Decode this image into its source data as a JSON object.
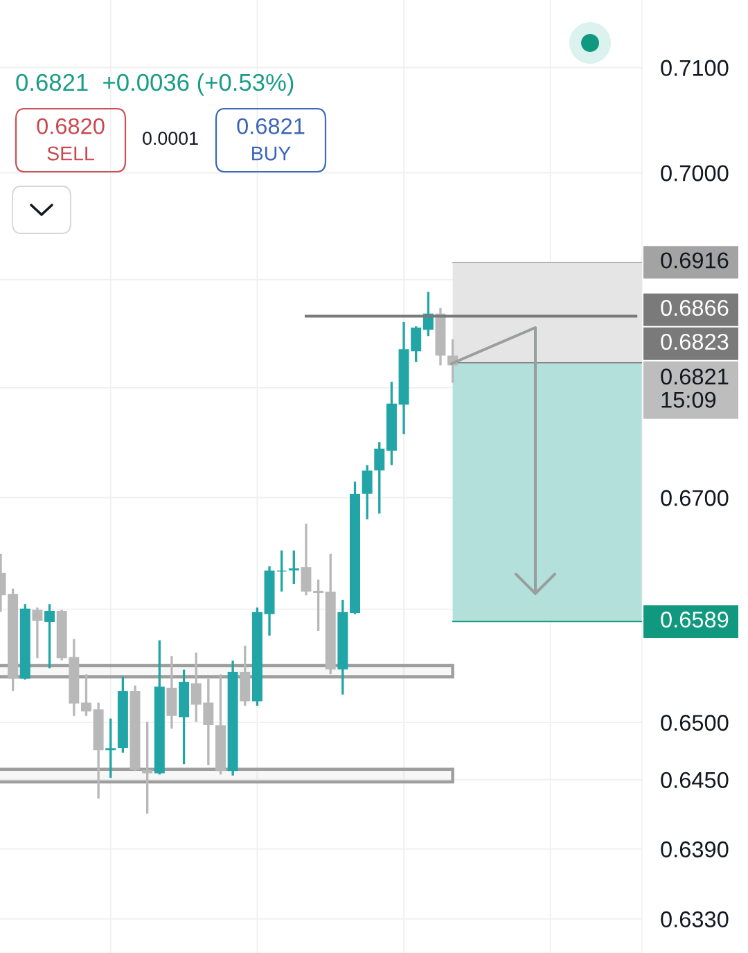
{
  "chart_data": {
    "type": "candlestick",
    "subtitle": "0.6821  +0.0036 (+0.53%)",
    "categories": [
      null,
      null,
      null,
      null,
      null,
      null,
      null,
      null,
      null,
      null,
      null,
      null,
      null,
      null,
      null,
      null,
      null,
      null,
      null,
      null,
      null,
      null,
      null,
      null,
      null,
      null,
      null,
      null,
      null,
      null,
      null,
      null,
      null,
      null,
      null,
      null,
      null,
      null,
      null,
      null,
      null,
      null,
      null,
      null,
      null,
      null,
      null,
      null,
      null,
      null,
      null,
      null,
      null
    ],
    "ohlc": [
      [
        0.6632,
        0.6649,
        0.6598,
        0.6613
      ],
      [
        0.6613,
        0.6618,
        0.6528,
        0.6539
      ],
      [
        0.6539,
        0.6604,
        0.6538,
        0.66
      ],
      [
        0.6599,
        0.6601,
        0.6557,
        0.659
      ],
      [
        0.6589,
        0.6604,
        0.6548,
        0.6598
      ],
      [
        0.6598,
        0.6599,
        0.6555,
        0.6557
      ],
      [
        0.6557,
        0.6573,
        0.6506,
        0.6517
      ],
      [
        0.6517,
        0.6542,
        0.6506,
        0.651
      ],
      [
        0.6511,
        0.6517,
        0.6434,
        0.6476
      ],
      [
        0.6476,
        0.6503,
        0.6452,
        0.6477
      ],
      [
        0.6478,
        0.654,
        0.6474,
        0.6527
      ],
      [
        0.6527,
        0.6532,
        0.6458,
        0.6459
      ],
      [
        0.6458,
        0.65,
        0.6421,
        0.6456
      ],
      [
        0.6456,
        0.6572,
        0.6455,
        0.6531
      ],
      [
        0.653,
        0.6558,
        0.6495,
        0.6506
      ],
      [
        0.6505,
        0.6546,
        0.6464,
        0.6535
      ],
      [
        0.6534,
        0.6561,
        0.6501,
        0.6516
      ],
      [
        0.6517,
        0.6538,
        0.6463,
        0.6498
      ],
      [
        0.6497,
        0.6542,
        0.6455,
        0.6458
      ],
      [
        0.6458,
        0.6554,
        0.6454,
        0.6544
      ],
      [
        0.6544,
        0.6567,
        0.6515,
        0.6519
      ],
      [
        0.6519,
        0.6601,
        0.6515,
        0.6597
      ],
      [
        0.6596,
        0.6638,
        0.6577,
        0.6634
      ],
      [
        0.6634,
        0.6652,
        0.6616,
        0.6634
      ],
      [
        0.6635,
        0.6652,
        0.6623,
        0.6636
      ],
      [
        0.6637,
        0.6676,
        0.6613,
        0.6616
      ],
      [
        0.6616,
        0.6626,
        0.6581,
        0.6615
      ],
      [
        0.6615,
        0.6649,
        0.6543,
        0.6547
      ],
      [
        0.6547,
        0.6608,
        0.6525,
        0.6597
      ],
      [
        0.6597,
        0.6714,
        0.6596,
        0.6703
      ],
      [
        0.6704,
        0.6729,
        0.6681,
        0.6724
      ],
      [
        0.6725,
        0.675,
        0.6686,
        0.6744
      ],
      [
        0.6743,
        0.6805,
        0.673,
        0.6785
      ],
      [
        0.6785,
        0.686,
        0.6758,
        0.6835
      ],
      [
        0.6834,
        0.6856,
        0.6824,
        0.6855
      ],
      [
        0.6854,
        0.6888,
        0.6848,
        0.6868
      ],
      [
        0.6868,
        0.6873,
        0.6821,
        0.683
      ],
      [
        0.6829,
        0.6844,
        0.6805,
        0.6821
      ],
      null,
      null,
      null,
      null,
      null,
      null,
      null,
      null,
      null,
      null,
      null,
      null,
      null,
      null,
      null
    ],
    "colors": [
      "#b8b8b8",
      "#b8b8b8",
      "#22a5a6",
      "#b8b8b8",
      "#22a5a6",
      "#b8b8b8",
      "#b8b8b8",
      "#b8b8b8",
      "#b8b8b8",
      "#22a5a6",
      "#22a5a6",
      "#b8b8b8",
      "#b8b8b8",
      "#22a5a6",
      "#b8b8b8",
      "#22a5a6",
      "#b8b8b8",
      "#b8b8b8",
      "#b8b8b8",
      "#22a5a6",
      "#b8b8b8",
      "#22a5a6",
      "#22a5a6",
      "#22a5a6",
      "#22a5a6",
      "#b8b8b8",
      "#b8b8b8",
      "#b8b8b8",
      "#22a5a6",
      "#22a5a6",
      "#22a5a6",
      "#22a5a6",
      "#22a5a6",
      "#22a5a6",
      "#22a5a6",
      "#22a5a6",
      "#b8b8b8",
      "#b8b8b8",
      null,
      null,
      null,
      null,
      null,
      null,
      null,
      null,
      null,
      null,
      null,
      null,
      null,
      null,
      null
    ],
    "series": [
      {
        "type": "line",
        "color": "#7a7a7a",
        "values": [
          null,
          null,
          null,
          null,
          null,
          null,
          null,
          null,
          null,
          null,
          null,
          null,
          null,
          null,
          null,
          null,
          null,
          null,
          null,
          null,
          null,
          null,
          null,
          null,
          null,
          0.6866,
          0.6866,
          0.6866,
          0.6866,
          0.6866,
          0.6866,
          0.6866,
          0.6866,
          0.6866,
          0.6866,
          0.6866,
          0.6866,
          0.6866,
          0.6866,
          0.6866,
          0.6866,
          0.6866,
          0.6866,
          0.6866,
          0.6866,
          0.6866,
          0.6866,
          0.6866,
          0.6866,
          0.6866,
          0.6866,
          0.6866,
          0.6866
        ],
        "value_labels": [
          null,
          null,
          null,
          null,
          null,
          null,
          null,
          null,
          null,
          null,
          null,
          null,
          null,
          null,
          null,
          null,
          null,
          null,
          null,
          null,
          null,
          null,
          null,
          null,
          null,
          null,
          null,
          null,
          null,
          null,
          null,
          null,
          null,
          null,
          null,
          null,
          null,
          null,
          null,
          null,
          null,
          null,
          null,
          null,
          null,
          null,
          null,
          null,
          null,
          null,
          null,
          null,
          "0.6866"
        ]
      }
    ],
    "bands": [
      {
        "axis": "y",
        "from": 0.6823,
        "to": 0.6916,
        "color": "#e5e5e5"
      },
      {
        "axis": "y",
        "from": 0.6589,
        "to": 0.6823,
        "color": "#b3e0db"
      },
      {
        "axis": "y",
        "from": 0.654,
        "to": 0.655,
        "color": "#9e9e9e"
      },
      {
        "axis": "y",
        "from": 0.6448,
        "to": 0.6459,
        "color": "#9e9e9e"
      }
    ],
    "ref_lines": [
      {
        "axis": "y",
        "value": 0.6916,
        "label": "0.6916",
        "color": "#a3a3a3"
      },
      {
        "axis": "y",
        "value": 0.6823,
        "label": "0.6823",
        "color": "#7a7a7a"
      },
      {
        "axis": "y",
        "value": 0.6589,
        "label": "0.6589",
        "color": "#10997f"
      }
    ],
    "annotations": [
      "0.6820",
      "SELL",
      "0.0001",
      "0.6821",
      "BUY",
      "0.6821\n15:09"
    ],
    "log": "y",
    "ylim": [
      0.6301,
      0.7165
    ],
    "yticks": [
      {
        "value": 0.71,
        "label": "0.7100"
      },
      {
        "value": 0.7,
        "label": "0.7000"
      },
      {
        "value": 0.69,
        "label": null
      },
      {
        "value": 0.68,
        "label": null
      },
      {
        "value": 0.67,
        "label": "0.6700"
      },
      {
        "value": 0.66,
        "label": null
      },
      {
        "value": 0.65,
        "label": "0.6500"
      },
      {
        "value": 0.645,
        "label": "0.6450"
      },
      {
        "value": 0.639,
        "label": "0.6390"
      },
      {
        "value": 0.633,
        "label": "0.6330"
      }
    ],
    "grid": true,
    "tick_labels": "y"
  }
}
